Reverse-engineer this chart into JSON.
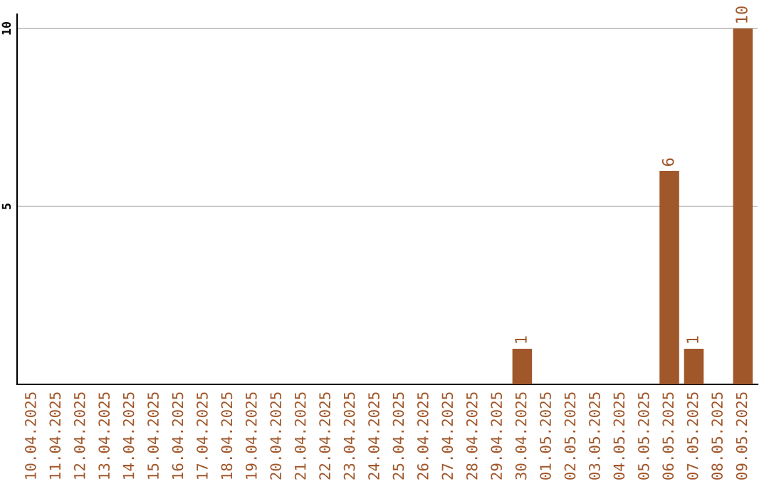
{
  "chart_data": {
    "type": "bar",
    "categories": [
      "10.04.2025",
      "11.04.2025",
      "12.04.2025",
      "13.04.2025",
      "14.04.2025",
      "15.04.2025",
      "16.04.2025",
      "17.04.2025",
      "18.04.2025",
      "19.04.2025",
      "20.04.2025",
      "21.04.2025",
      "22.04.2025",
      "23.04.2025",
      "24.04.2025",
      "25.04.2025",
      "26.04.2025",
      "27.04.2025",
      "28.04.2025",
      "29.04.2025",
      "30.04.2025",
      "01.05.2025",
      "02.05.2025",
      "03.05.2025",
      "04.05.2025",
      "05.05.2025",
      "06.05.2025",
      "07.05.2025",
      "08.05.2025",
      "09.05.2025"
    ],
    "values": [
      0,
      0,
      0,
      0,
      0,
      0,
      0,
      0,
      0,
      0,
      0,
      0,
      0,
      0,
      0,
      0,
      0,
      0,
      0,
      0,
      1,
      0,
      0,
      0,
      0,
      0,
      6,
      1,
      0,
      10
    ],
    "value_labels": [
      null,
      null,
      null,
      null,
      null,
      null,
      null,
      null,
      null,
      null,
      null,
      null,
      null,
      null,
      null,
      null,
      null,
      null,
      null,
      null,
      "1",
      null,
      null,
      null,
      null,
      null,
      "6",
      "1",
      null,
      "10"
    ],
    "color": "#a0572a",
    "ylim": [
      0,
      10.4
    ],
    "yticks": [
      5,
      10
    ],
    "grid": "y"
  }
}
